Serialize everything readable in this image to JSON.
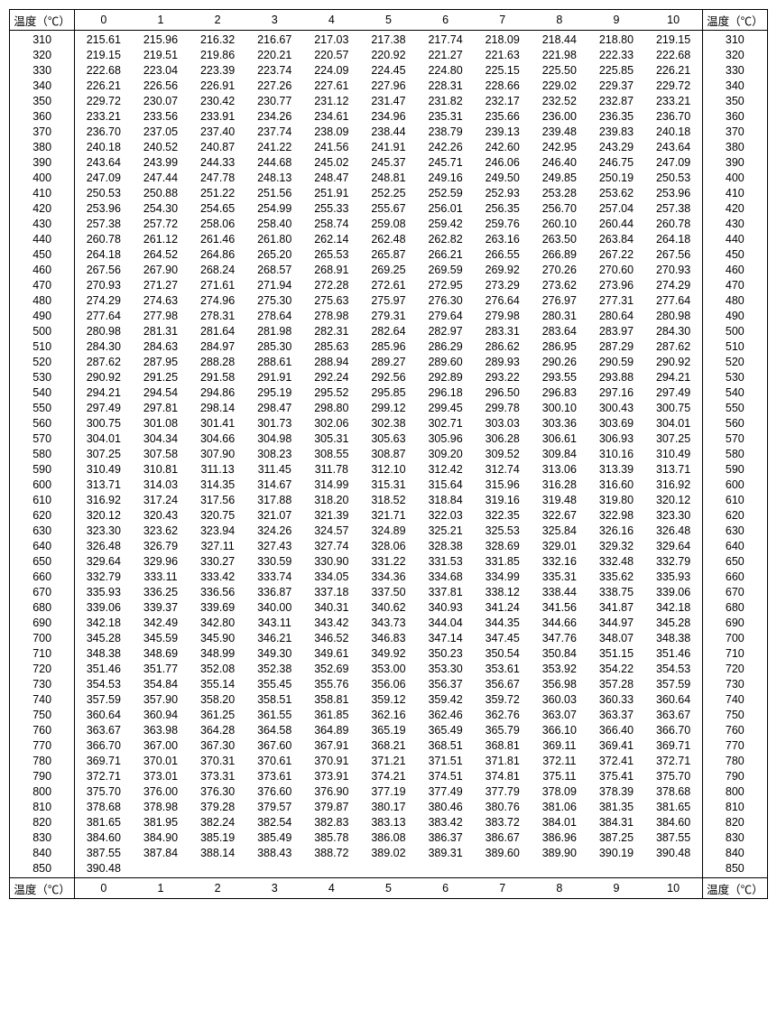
{
  "table": {
    "type": "table",
    "header_label": "温度（℃）",
    "columns": [
      "0",
      "1",
      "2",
      "3",
      "4",
      "5",
      "6",
      "7",
      "8",
      "9",
      "10"
    ],
    "rows": [
      {
        "t": 310,
        "v": [
          "215.61",
          "215.96",
          "216.32",
          "216.67",
          "217.03",
          "217.38",
          "217.74",
          "218.09",
          "218.44",
          "218.80",
          "219.15"
        ]
      },
      {
        "t": 320,
        "v": [
          "219.15",
          "219.51",
          "219.86",
          "220.21",
          "220.57",
          "220.92",
          "221.27",
          "221.63",
          "221.98",
          "222.33",
          "222.68"
        ]
      },
      {
        "t": 330,
        "v": [
          "222.68",
          "223.04",
          "223.39",
          "223.74",
          "224.09",
          "224.45",
          "224.80",
          "225.15",
          "225.50",
          "225.85",
          "226.21"
        ]
      },
      {
        "t": 340,
        "v": [
          "226.21",
          "226.56",
          "226.91",
          "227.26",
          "227.61",
          "227.96",
          "228.31",
          "228.66",
          "229.02",
          "229.37",
          "229.72"
        ]
      },
      {
        "t": 350,
        "v": [
          "229.72",
          "230.07",
          "230.42",
          "230.77",
          "231.12",
          "231.47",
          "231.82",
          "232.17",
          "232.52",
          "232.87",
          "233.21"
        ]
      },
      {
        "t": 360,
        "v": [
          "233.21",
          "233.56",
          "233.91",
          "234.26",
          "234.61",
          "234.96",
          "235.31",
          "235.66",
          "236.00",
          "236.35",
          "236.70"
        ]
      },
      {
        "t": 370,
        "v": [
          "236.70",
          "237.05",
          "237.40",
          "237.74",
          "238.09",
          "238.44",
          "238.79",
          "239.13",
          "239.48",
          "239.83",
          "240.18"
        ]
      },
      {
        "t": 380,
        "v": [
          "240.18",
          "240.52",
          "240.87",
          "241.22",
          "241.56",
          "241.91",
          "242.26",
          "242.60",
          "242.95",
          "243.29",
          "243.64"
        ]
      },
      {
        "t": 390,
        "v": [
          "243.64",
          "243.99",
          "244.33",
          "244.68",
          "245.02",
          "245.37",
          "245.71",
          "246.06",
          "246.40",
          "246.75",
          "247.09"
        ]
      },
      {
        "t": 400,
        "v": [
          "247.09",
          "247.44",
          "247.78",
          "248.13",
          "248.47",
          "248.81",
          "249.16",
          "249.50",
          "249.85",
          "250.19",
          "250.53"
        ]
      },
      {
        "t": 410,
        "v": [
          "250.53",
          "250.88",
          "251.22",
          "251.56",
          "251.91",
          "252.25",
          "252.59",
          "252.93",
          "253.28",
          "253.62",
          "253.96"
        ]
      },
      {
        "t": 420,
        "v": [
          "253.96",
          "254.30",
          "254.65",
          "254.99",
          "255.33",
          "255.67",
          "256.01",
          "256.35",
          "256.70",
          "257.04",
          "257.38"
        ]
      },
      {
        "t": 430,
        "v": [
          "257.38",
          "257.72",
          "258.06",
          "258.40",
          "258.74",
          "259.08",
          "259.42",
          "259.76",
          "260.10",
          "260.44",
          "260.78"
        ]
      },
      {
        "t": 440,
        "v": [
          "260.78",
          "261.12",
          "261.46",
          "261.80",
          "262.14",
          "262.48",
          "262.82",
          "263.16",
          "263.50",
          "263.84",
          "264.18"
        ]
      },
      {
        "t": 450,
        "v": [
          "264.18",
          "264.52",
          "264.86",
          "265.20",
          "265.53",
          "265.87",
          "266.21",
          "266.55",
          "266.89",
          "267.22",
          "267.56"
        ]
      },
      {
        "t": 460,
        "v": [
          "267.56",
          "267.90",
          "268.24",
          "268.57",
          "268.91",
          "269.25",
          "269.59",
          "269.92",
          "270.26",
          "270.60",
          "270.93"
        ]
      },
      {
        "t": 470,
        "v": [
          "270.93",
          "271.27",
          "271.61",
          "271.94",
          "272.28",
          "272.61",
          "272.95",
          "273.29",
          "273.62",
          "273.96",
          "274.29"
        ]
      },
      {
        "t": 480,
        "v": [
          "274.29",
          "274.63",
          "274.96",
          "275.30",
          "275.63",
          "275.97",
          "276.30",
          "276.64",
          "276.97",
          "277.31",
          "277.64"
        ]
      },
      {
        "t": 490,
        "v": [
          "277.64",
          "277.98",
          "278.31",
          "278.64",
          "278.98",
          "279.31",
          "279.64",
          "279.98",
          "280.31",
          "280.64",
          "280.98"
        ]
      },
      {
        "t": 500,
        "v": [
          "280.98",
          "281.31",
          "281.64",
          "281.98",
          "282.31",
          "282.64",
          "282.97",
          "283.31",
          "283.64",
          "283.97",
          "284.30"
        ]
      },
      {
        "t": 510,
        "v": [
          "284.30",
          "284.63",
          "284.97",
          "285.30",
          "285.63",
          "285.96",
          "286.29",
          "286.62",
          "286.95",
          "287.29",
          "287.62"
        ]
      },
      {
        "t": 520,
        "v": [
          "287.62",
          "287.95",
          "288.28",
          "288.61",
          "288.94",
          "289.27",
          "289.60",
          "289.93",
          "290.26",
          "290.59",
          "290.92"
        ]
      },
      {
        "t": 530,
        "v": [
          "290.92",
          "291.25",
          "291.58",
          "291.91",
          "292.24",
          "292.56",
          "292.89",
          "293.22",
          "293.55",
          "293.88",
          "294.21"
        ]
      },
      {
        "t": 540,
        "v": [
          "294.21",
          "294.54",
          "294.86",
          "295.19",
          "295.52",
          "295.85",
          "296.18",
          "296.50",
          "296.83",
          "297.16",
          "297.49"
        ]
      },
      {
        "t": 550,
        "v": [
          "297.49",
          "297.81",
          "298.14",
          "298.47",
          "298.80",
          "299.12",
          "299.45",
          "299.78",
          "300.10",
          "300.43",
          "300.75"
        ]
      },
      {
        "t": 560,
        "v": [
          "300.75",
          "301.08",
          "301.41",
          "301.73",
          "302.06",
          "302.38",
          "302.71",
          "303.03",
          "303.36",
          "303.69",
          "304.01"
        ]
      },
      {
        "t": 570,
        "v": [
          "304.01",
          "304.34",
          "304.66",
          "304.98",
          "305.31",
          "305.63",
          "305.96",
          "306.28",
          "306.61",
          "306.93",
          "307.25"
        ]
      },
      {
        "t": 580,
        "v": [
          "307.25",
          "307.58",
          "307.90",
          "308.23",
          "308.55",
          "308.87",
          "309.20",
          "309.52",
          "309.84",
          "310.16",
          "310.49"
        ]
      },
      {
        "t": 590,
        "v": [
          "310.49",
          "310.81",
          "311.13",
          "311.45",
          "311.78",
          "312.10",
          "312.42",
          "312.74",
          "313.06",
          "313.39",
          "313.71"
        ]
      },
      {
        "t": 600,
        "v": [
          "313.71",
          "314.03",
          "314.35",
          "314.67",
          "314.99",
          "315.31",
          "315.64",
          "315.96",
          "316.28",
          "316.60",
          "316.92"
        ]
      },
      {
        "t": 610,
        "v": [
          "316.92",
          "317.24",
          "317.56",
          "317.88",
          "318.20",
          "318.52",
          "318.84",
          "319.16",
          "319.48",
          "319.80",
          "320.12"
        ]
      },
      {
        "t": 620,
        "v": [
          "320.12",
          "320.43",
          "320.75",
          "321.07",
          "321.39",
          "321.71",
          "322.03",
          "322.35",
          "322.67",
          "322.98",
          "323.30"
        ]
      },
      {
        "t": 630,
        "v": [
          "323.30",
          "323.62",
          "323.94",
          "324.26",
          "324.57",
          "324.89",
          "325.21",
          "325.53",
          "325.84",
          "326.16",
          "326.48"
        ]
      },
      {
        "t": 640,
        "v": [
          "326.48",
          "326.79",
          "327.11",
          "327.43",
          "327.74",
          "328.06",
          "328.38",
          "328.69",
          "329.01",
          "329.32",
          "329.64"
        ]
      },
      {
        "t": 650,
        "v": [
          "329.64",
          "329.96",
          "330.27",
          "330.59",
          "330.90",
          "331.22",
          "331.53",
          "331.85",
          "332.16",
          "332.48",
          "332.79"
        ]
      },
      {
        "t": 660,
        "v": [
          "332.79",
          "333.11",
          "333.42",
          "333.74",
          "334.05",
          "334.36",
          "334.68",
          "334.99",
          "335.31",
          "335.62",
          "335.93"
        ]
      },
      {
        "t": 670,
        "v": [
          "335.93",
          "336.25",
          "336.56",
          "336.87",
          "337.18",
          "337.50",
          "337.81",
          "338.12",
          "338.44",
          "338.75",
          "339.06"
        ]
      },
      {
        "t": 680,
        "v": [
          "339.06",
          "339.37",
          "339.69",
          "340.00",
          "340.31",
          "340.62",
          "340.93",
          "341.24",
          "341.56",
          "341.87",
          "342.18"
        ]
      },
      {
        "t": 690,
        "v": [
          "342.18",
          "342.49",
          "342.80",
          "343.11",
          "343.42",
          "343.73",
          "344.04",
          "344.35",
          "344.66",
          "344.97",
          "345.28"
        ]
      },
      {
        "t": 700,
        "v": [
          "345.28",
          "345.59",
          "345.90",
          "346.21",
          "346.52",
          "346.83",
          "347.14",
          "347.45",
          "347.76",
          "348.07",
          "348.38"
        ]
      },
      {
        "t": 710,
        "v": [
          "348.38",
          "348.69",
          "348.99",
          "349.30",
          "349.61",
          "349.92",
          "350.23",
          "350.54",
          "350.84",
          "351.15",
          "351.46"
        ]
      },
      {
        "t": 720,
        "v": [
          "351.46",
          "351.77",
          "352.08",
          "352.38",
          "352.69",
          "353.00",
          "353.30",
          "353.61",
          "353.92",
          "354.22",
          "354.53"
        ]
      },
      {
        "t": 730,
        "v": [
          "354.53",
          "354.84",
          "355.14",
          "355.45",
          "355.76",
          "356.06",
          "356.37",
          "356.67",
          "356.98",
          "357.28",
          "357.59"
        ]
      },
      {
        "t": 740,
        "v": [
          "357.59",
          "357.90",
          "358.20",
          "358.51",
          "358.81",
          "359.12",
          "359.42",
          "359.72",
          "360.03",
          "360.33",
          "360.64"
        ]
      },
      {
        "t": 750,
        "v": [
          "360.64",
          "360.94",
          "361.25",
          "361.55",
          "361.85",
          "362.16",
          "362.46",
          "362.76",
          "363.07",
          "363.37",
          "363.67"
        ]
      },
      {
        "t": 760,
        "v": [
          "363.67",
          "363.98",
          "364.28",
          "364.58",
          "364.89",
          "365.19",
          "365.49",
          "365.79",
          "366.10",
          "366.40",
          "366.70"
        ]
      },
      {
        "t": 770,
        "v": [
          "366.70",
          "367.00",
          "367.30",
          "367.60",
          "367.91",
          "368.21",
          "368.51",
          "368.81",
          "369.11",
          "369.41",
          "369.71"
        ]
      },
      {
        "t": 780,
        "v": [
          "369.71",
          "370.01",
          "370.31",
          "370.61",
          "370.91",
          "371.21",
          "371.51",
          "371.81",
          "372.11",
          "372.41",
          "372.71"
        ]
      },
      {
        "t": 790,
        "v": [
          "372.71",
          "373.01",
          "373.31",
          "373.61",
          "373.91",
          "374.21",
          "374.51",
          "374.81",
          "375.11",
          "375.41",
          "375.70"
        ]
      },
      {
        "t": 800,
        "v": [
          "375.70",
          "376.00",
          "376.30",
          "376.60",
          "376.90",
          "377.19",
          "377.49",
          "377.79",
          "378.09",
          "378.39",
          "378.68"
        ]
      },
      {
        "t": 810,
        "v": [
          "378.68",
          "378.98",
          "379.28",
          "379.57",
          "379.87",
          "380.17",
          "380.46",
          "380.76",
          "381.06",
          "381.35",
          "381.65"
        ]
      },
      {
        "t": 820,
        "v": [
          "381.65",
          "381.95",
          "382.24",
          "382.54",
          "382.83",
          "383.13",
          "383.42",
          "383.72",
          "384.01",
          "384.31",
          "384.60"
        ]
      },
      {
        "t": 830,
        "v": [
          "384.60",
          "384.90",
          "385.19",
          "385.49",
          "385.78",
          "386.08",
          "386.37",
          "386.67",
          "386.96",
          "387.25",
          "387.55"
        ]
      },
      {
        "t": 840,
        "v": [
          "387.55",
          "387.84",
          "388.14",
          "388.43",
          "388.72",
          "389.02",
          "389.31",
          "389.60",
          "389.90",
          "390.19",
          "390.48"
        ]
      },
      {
        "t": 850,
        "v": [
          "390.48",
          "",
          "",
          "",
          "",
          "",
          "",
          "",
          "",
          "",
          ""
        ]
      }
    ],
    "font_size": 12.5,
    "border_color": "#000000",
    "background_color": "#ffffff",
    "text_color": "#000000"
  }
}
